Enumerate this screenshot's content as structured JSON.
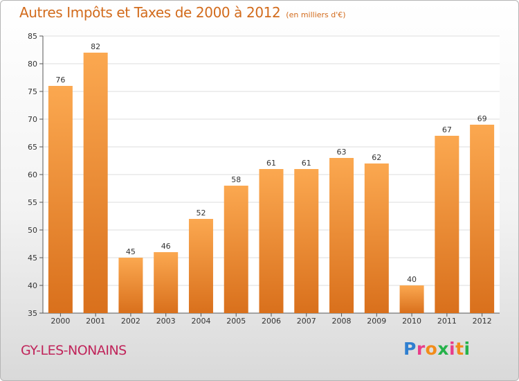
{
  "header": {
    "title": "Autres Impôts et Taxes de 2000 à 2012",
    "unit": "(en milliers d'€)"
  },
  "footer": {
    "location": "GY-LES-NONAINS",
    "logo_letters": [
      "P",
      "r",
      "o",
      "x",
      "i",
      "t",
      "i"
    ],
    "logo_colors": [
      "#2f7fd0",
      "#e83d8a",
      "#f28c1a",
      "#25b24a",
      "#e83d8a",
      "#f28c1a",
      "#25b24a"
    ]
  },
  "colors": {
    "bar_light": "#fba850",
    "bar_dark": "#d9701c",
    "grid": "#dddddd",
    "axis": "#555555"
  },
  "chart_data": {
    "type": "bar",
    "title": "Autres Impôts et Taxes de 2000 à 2012",
    "xlabel": "",
    "ylabel": "",
    "categories": [
      "2000",
      "2001",
      "2002",
      "2003",
      "2004",
      "2005",
      "2006",
      "2007",
      "2008",
      "2009",
      "2010",
      "2011",
      "2012"
    ],
    "values": [
      76,
      82,
      45,
      46,
      52,
      58,
      61,
      61,
      63,
      62,
      40,
      67,
      69
    ],
    "ylim": [
      35,
      85
    ],
    "yticks": [
      35,
      40,
      45,
      50,
      55,
      60,
      65,
      70,
      75,
      80,
      85
    ],
    "grid": true,
    "legend": "none"
  }
}
